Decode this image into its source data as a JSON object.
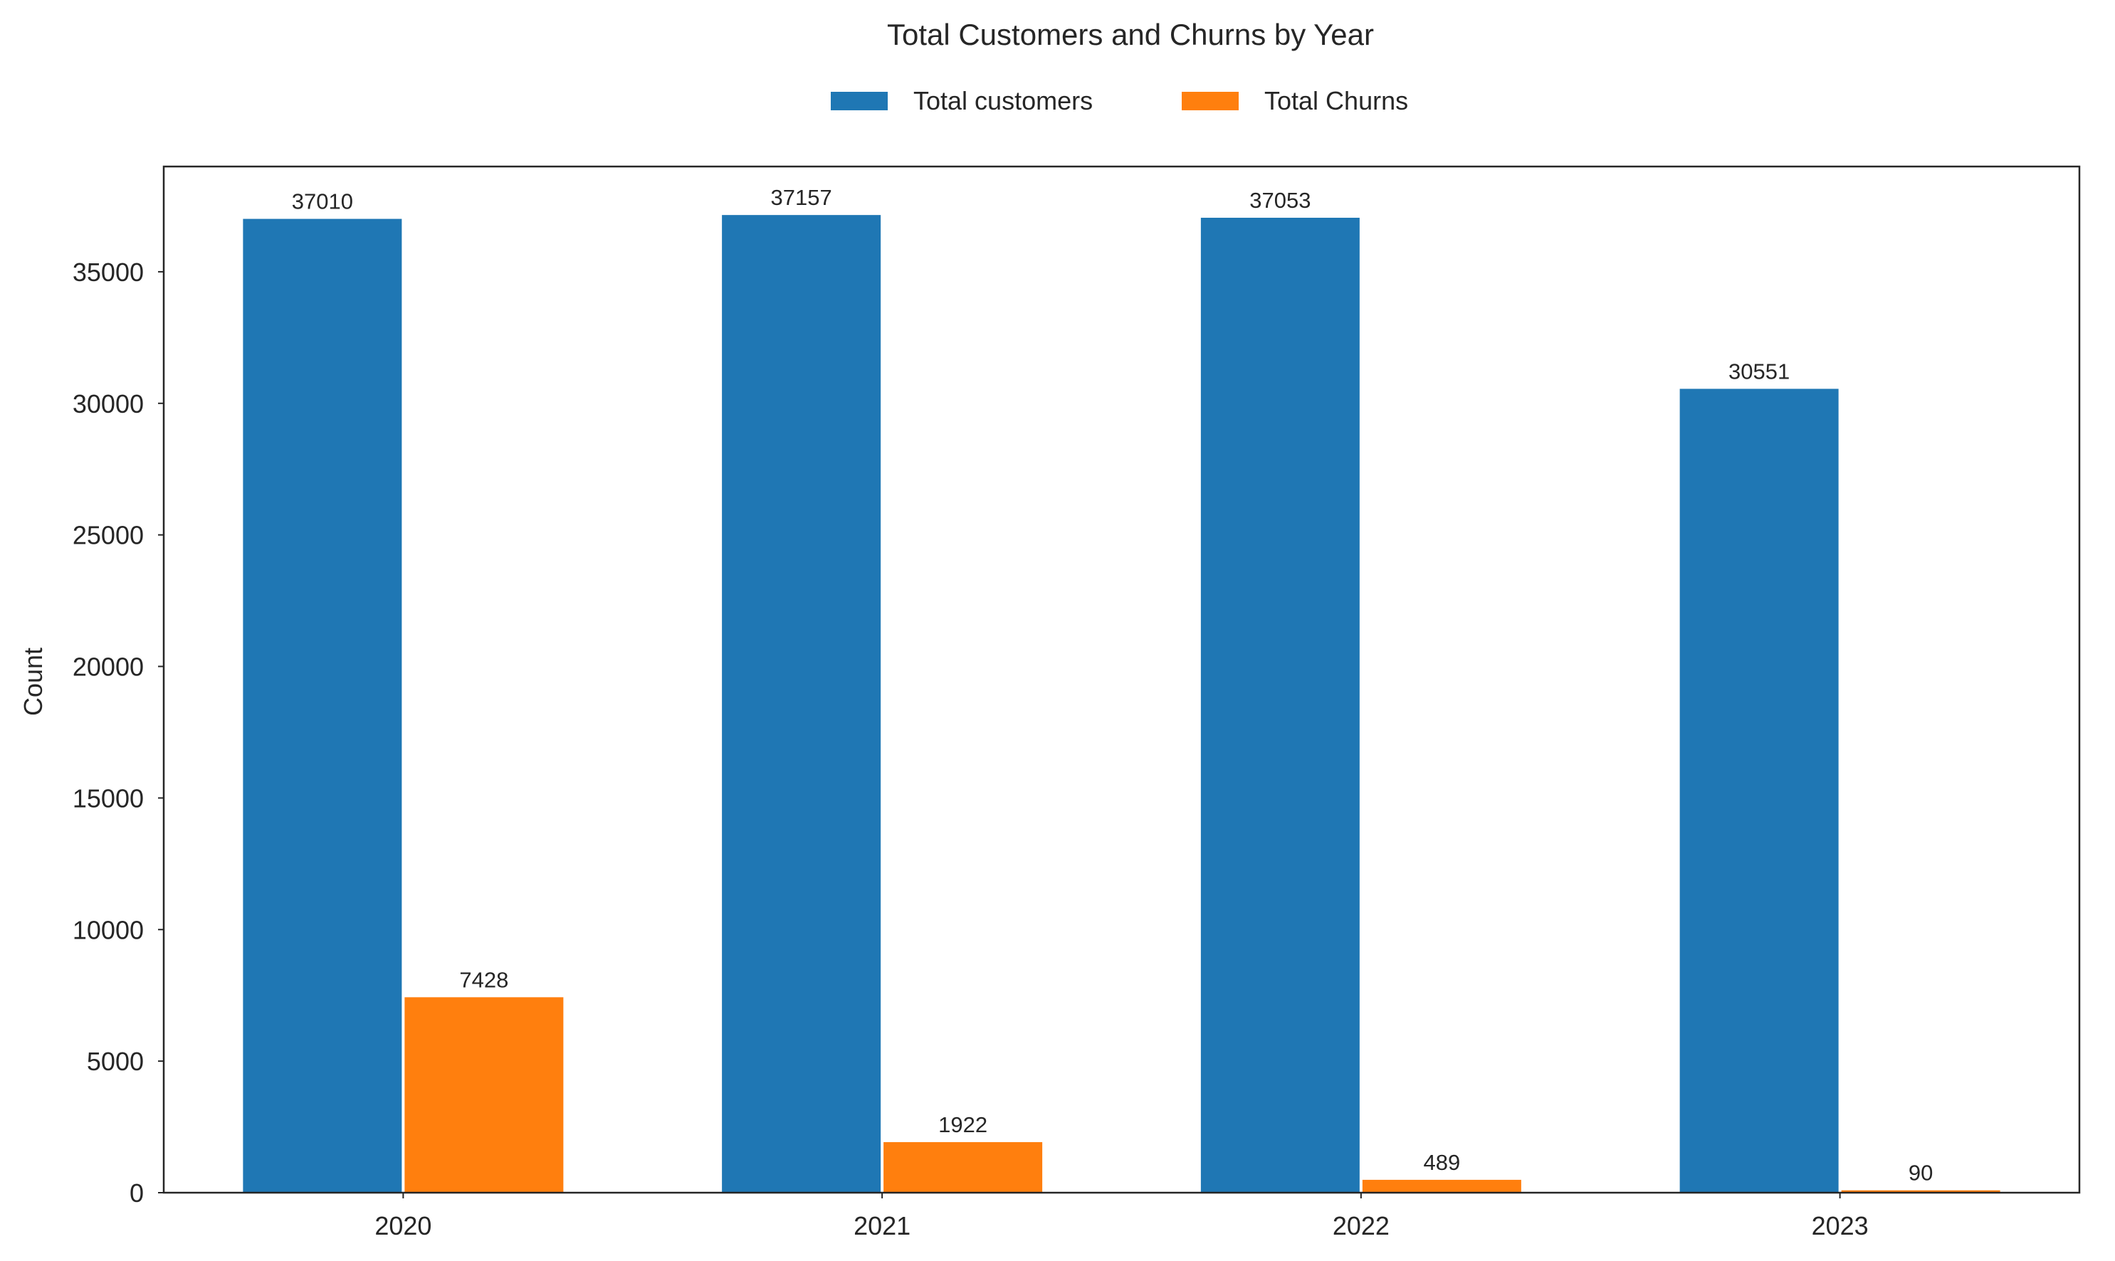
{
  "chart_data": {
    "type": "bar",
    "title": "Total Customers and Churns by Year",
    "xlabel": "",
    "ylabel": "Count",
    "categories": [
      "2020",
      "2021",
      "2022",
      "2023"
    ],
    "series": [
      {
        "name": "Total customers",
        "color": "#1f77b4",
        "values": [
          37010,
          37157,
          37053,
          30551
        ]
      },
      {
        "name": "Total Churns",
        "color": "#ff7f0e",
        "values": [
          7428,
          1922,
          489,
          90
        ]
      }
    ],
    "ylim": [
      0,
      39000
    ],
    "yticks": [
      0,
      5000,
      10000,
      15000,
      20000,
      25000,
      30000,
      35000
    ],
    "legend": "top-center",
    "grid": false
  }
}
